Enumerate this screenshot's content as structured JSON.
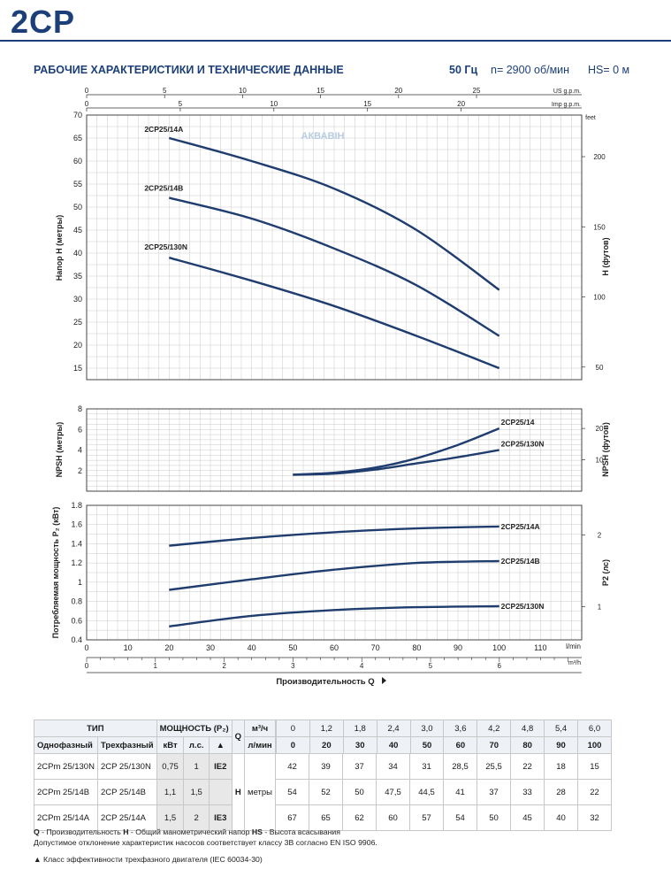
{
  "header": {
    "brand": "2CP",
    "section_title": "РАБОЧИЕ ХАРАКТЕРИСТИКИ И ТЕХНИЧЕСКИЕ ДАННЫЕ",
    "freq": "50 Гц",
    "speed": "n= 2900 об/мин",
    "hs": "HS= 0 м"
  },
  "watermark": "АКВАВІН",
  "chart_data": [
    {
      "type": "line",
      "title": "Напор",
      "ylabel": "Напор H (метры)",
      "ylabel_right": "H (футов)",
      "xlabel": "Производительность Q",
      "x_unit": "l/min",
      "ylim": [
        15,
        70
      ],
      "y_ticks": [
        "15",
        "20",
        "25",
        "30",
        "35",
        "40",
        "45",
        "50",
        "55",
        "60",
        "65",
        "70"
      ],
      "right_ticks": [
        "50",
        "100",
        "150",
        "200"
      ],
      "right_unit": "feet",
      "top_axis_us": {
        "label": "US g.p.m.",
        "ticks": [
          "0",
          "5",
          "10",
          "15",
          "20",
          "25"
        ]
      },
      "top_axis_imp": {
        "label": "Imp g.p.m.",
        "ticks": [
          "0",
          "5",
          "10",
          "15",
          "20"
        ]
      },
      "series": [
        {
          "name": "2CP25/14A",
          "x": [
            20,
            40,
            60,
            80,
            100
          ],
          "values": [
            65,
            60,
            54,
            45,
            32
          ]
        },
        {
          "name": "2CP25/14B",
          "x": [
            20,
            40,
            60,
            80,
            100
          ],
          "values": [
            52,
            47.5,
            41,
            33,
            22
          ]
        },
        {
          "name": "2CP25/130N",
          "x": [
            20,
            40,
            60,
            80,
            100
          ],
          "values": [
            39,
            34,
            28.5,
            22,
            15
          ]
        }
      ]
    },
    {
      "type": "line",
      "title": "NPSH",
      "ylabel": "NPSH (метры)",
      "ylabel_right": "NPSH (футов)",
      "ylim": [
        0,
        8
      ],
      "y_ticks": [
        "2",
        "4",
        "6",
        "8"
      ],
      "right_ticks": [
        "10",
        "20"
      ],
      "series": [
        {
          "name": "2CP25/14",
          "x": [
            50,
            60,
            70,
            80,
            90,
            100
          ],
          "values": [
            1.6,
            1.8,
            2.3,
            3.2,
            4.5,
            6.1
          ]
        },
        {
          "name": "2CP25/130N",
          "x": [
            50,
            60,
            70,
            80,
            90,
            100
          ],
          "values": [
            1.6,
            1.7,
            2.1,
            2.7,
            3.3,
            4.0
          ]
        }
      ]
    },
    {
      "type": "line",
      "title": "Потребляемая мощность",
      "ylabel": "Потребляемая мощность P₂ (кВт)",
      "ylabel_right": "P2 (лс)",
      "ylim": [
        0.4,
        1.8
      ],
      "y_ticks": [
        "0.4",
        "0.6",
        "0.8",
        "1",
        "1.2",
        "1.4",
        "1.6",
        "1.8"
      ],
      "right_ticks": [
        "1",
        "2"
      ],
      "x_ticks": [
        "0",
        "10",
        "20",
        "30",
        "40",
        "50",
        "60",
        "70",
        "80",
        "90",
        "100",
        "110"
      ],
      "x_unit2": "m³/h",
      "x2_ticks": [
        "0",
        "1",
        "2",
        "3",
        "4",
        "5",
        "6"
      ],
      "series": [
        {
          "name": "2CP25/14A",
          "x": [
            20,
            40,
            60,
            80,
            100
          ],
          "values": [
            1.38,
            1.46,
            1.52,
            1.56,
            1.58
          ]
        },
        {
          "name": "2CP25/14B",
          "x": [
            20,
            40,
            60,
            80,
            100
          ],
          "values": [
            0.92,
            1.03,
            1.13,
            1.2,
            1.22
          ]
        },
        {
          "name": "2CP25/130N",
          "x": [
            20,
            40,
            60,
            80,
            100
          ],
          "values": [
            0.54,
            0.65,
            0.71,
            0.74,
            0.75
          ]
        }
      ]
    }
  ],
  "table": {
    "h_type": "ТИП",
    "h_power": "МОЩНОСТЬ (P₂)",
    "h_q": "Q",
    "h_m3h": "м³/ч",
    "h_lmin": "л/мин",
    "h_single": "Однофазный",
    "h_three": "Трехфазный",
    "h_kw": "кВт",
    "h_hp": "л.с.",
    "h_tri": "▲",
    "h_H": "H",
    "h_meters": "метры",
    "q_m3h": [
      "0",
      "1,2",
      "1,8",
      "2,4",
      "3,0",
      "3,6",
      "4,2",
      "4,8",
      "5,4",
      "6,0"
    ],
    "q_lmin": [
      "0",
      "20",
      "30",
      "40",
      "50",
      "60",
      "70",
      "80",
      "90",
      "100"
    ],
    "rows": [
      {
        "single": "2CPm 25/130N",
        "three": "2CP 25/130N",
        "kw": "0,75",
        "hp": "1",
        "ie": "IE2",
        "h": [
          "42",
          "39",
          "37",
          "34",
          "31",
          "28,5",
          "25,5",
          "22",
          "18",
          "15"
        ]
      },
      {
        "single": "2CPm 25/14B",
        "three": "2CP 25/14B",
        "kw": "1,1",
        "hp": "1,5",
        "ie": "",
        "h": [
          "54",
          "52",
          "50",
          "47,5",
          "44,5",
          "41",
          "37",
          "33",
          "28",
          "22"
        ]
      },
      {
        "single": "2CPm 25/14A",
        "three": "2CP 25/14A",
        "kw": "1,5",
        "hp": "2",
        "ie": "IE3",
        "h": [
          "67",
          "65",
          "62",
          "60",
          "57",
          "54",
          "50",
          "45",
          "40",
          "32"
        ]
      }
    ]
  },
  "legend": {
    "q_abbr": "Q",
    "q_text": " - Производительность  ",
    "h_abbr": "H",
    "h_text": " - Общий манометрический напор  ",
    "hs_abbr": "HS",
    "hs_text": " - Высота всасывания",
    "tolerance": "Допустимое отклонение характеристик насосов соответствует классу 3B согласно EN ISO 9906.",
    "triangle": "▲  Класс эффективности трехфазного двигателя (IEC 60034-30)"
  },
  "colors": {
    "brand": "#1c3f7a",
    "curve": "#1f3d6e",
    "grid": "#c9c9c9"
  }
}
